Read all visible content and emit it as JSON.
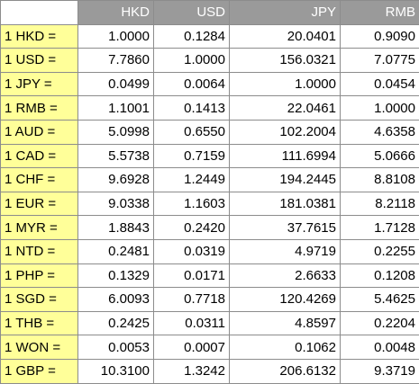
{
  "table": {
    "headers": [
      "",
      "HKD",
      "USD",
      "JPY",
      "RMB"
    ],
    "rows": [
      {
        "label": "1 HKD =",
        "values": [
          "1.0000",
          "0.1284",
          "20.0401",
          "0.9090"
        ]
      },
      {
        "label": "1 USD =",
        "values": [
          "7.7860",
          "1.0000",
          "156.0321",
          "7.0775"
        ]
      },
      {
        "label": "1 JPY =",
        "values": [
          "0.0499",
          "0.0064",
          "1.0000",
          "0.0454"
        ]
      },
      {
        "label": "1 RMB =",
        "values": [
          "1.1001",
          "0.1413",
          "22.0461",
          "1.0000"
        ]
      },
      {
        "label": "1 AUD =",
        "values": [
          "5.0998",
          "0.6550",
          "102.2004",
          "4.6358"
        ]
      },
      {
        "label": "1 CAD =",
        "values": [
          "5.5738",
          "0.7159",
          "111.6994",
          "5.0666"
        ]
      },
      {
        "label": "1 CHF =",
        "values": [
          "9.6928",
          "1.2449",
          "194.2445",
          "8.8108"
        ]
      },
      {
        "label": "1 EUR =",
        "values": [
          "9.0338",
          "1.1603",
          "181.0381",
          "8.2118"
        ]
      },
      {
        "label": "1 MYR =",
        "values": [
          "1.8843",
          "0.2420",
          "37.7615",
          "1.7128"
        ]
      },
      {
        "label": "1 NTD =",
        "values": [
          "0.2481",
          "0.0319",
          "4.9719",
          "0.2255"
        ]
      },
      {
        "label": "1 PHP =",
        "values": [
          "0.1329",
          "0.0171",
          "2.6633",
          "0.1208"
        ]
      },
      {
        "label": "1 SGD =",
        "values": [
          "6.0093",
          "0.7718",
          "120.4269",
          "5.4625"
        ]
      },
      {
        "label": "1 THB =",
        "values": [
          "0.2425",
          "0.0311",
          "4.8597",
          "0.2204"
        ]
      },
      {
        "label": "1 WON =",
        "values": [
          "0.0053",
          "0.0007",
          "0.1062",
          "0.0048"
        ]
      },
      {
        "label": "1 GBP =",
        "values": [
          "10.3100",
          "1.3242",
          "206.6132",
          "9.3719"
        ]
      }
    ]
  },
  "colors": {
    "header_background": "#9a9a9a",
    "header_text": "#ffffff",
    "label_background": "#ffff99",
    "grid_line": "#8c8c8c"
  }
}
